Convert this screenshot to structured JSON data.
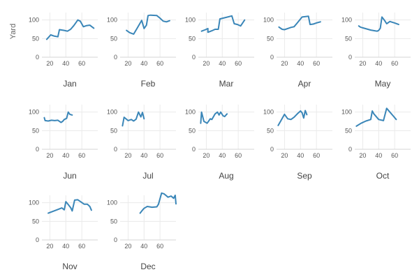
{
  "chart_data": {
    "type": "line",
    "ylabel": "Yard",
    "xlim": [
      10,
      80
    ],
    "ylim": [
      0,
      120
    ],
    "xticks": [
      20,
      40,
      60
    ],
    "yticks": [
      0,
      50,
      100
    ],
    "line_color": "#3a86b8",
    "grid": true,
    "panels": [
      {
        "title": "Jan",
        "x": [
          16,
          21,
          25,
          30,
          32,
          38,
          42,
          46,
          50,
          55,
          58,
          62,
          66,
          70,
          75
        ],
        "y": [
          48,
          60,
          57,
          55,
          74,
          72,
          70,
          75,
          85,
          100,
          97,
          82,
          85,
          86,
          78
        ]
      },
      {
        "title": "Feb",
        "x": [
          18,
          22,
          27,
          32,
          37,
          40,
          43,
          45,
          48,
          56,
          60,
          64,
          68,
          72
        ],
        "y": [
          72,
          66,
          62,
          80,
          99,
          77,
          86,
          112,
          113,
          112,
          105,
          97,
          95,
          98
        ]
      },
      {
        "title": "Mar",
        "x": [
          14,
          19,
          22,
          22,
          27,
          31,
          35,
          37,
          45,
          52,
          55,
          59,
          63,
          68
        ],
        "y": [
          70,
          74,
          77,
          67,
          71,
          75,
          75,
          103,
          107,
          111,
          90,
          88,
          84,
          100
        ]
      },
      {
        "title": "Apr",
        "x": [
          13,
          17,
          20,
          24,
          28,
          32,
          36,
          42,
          50,
          52,
          56,
          60,
          65
        ],
        "y": [
          81,
          75,
          74,
          77,
          80,
          82,
          92,
          108,
          110,
          88,
          89,
          92,
          95
        ]
      },
      {
        "title": "May",
        "x": [
          15,
          17,
          20,
          25,
          30,
          35,
          38,
          40,
          42,
          44,
          47,
          50,
          54,
          60,
          65
        ],
        "y": [
          84,
          81,
          79,
          76,
          73,
          71,
          70,
          72,
          78,
          108,
          100,
          90,
          96,
          92,
          88
        ]
      },
      {
        "title": "Jun",
        "x": [
          13,
          14,
          18,
          22,
          26,
          30,
          34,
          36,
          38,
          41,
          43,
          45,
          48
        ],
        "y": [
          85,
          77,
          76,
          78,
          77,
          78,
          72,
          75,
          80,
          83,
          100,
          94,
          92
        ]
      },
      {
        "title": "Jul",
        "x": [
          13,
          15,
          20,
          24,
          27,
          30,
          33,
          36,
          38,
          40
        ],
        "y": [
          63,
          86,
          77,
          80,
          76,
          81,
          100,
          87,
          99,
          82
        ]
      },
      {
        "title": "Aug",
        "x": [
          13,
          14,
          17,
          21,
          25,
          27,
          31,
          34,
          36,
          38,
          41,
          43,
          46
        ],
        "y": [
          70,
          100,
          75,
          70,
          82,
          80,
          95,
          100,
          92,
          100,
          90,
          88,
          95
        ]
      },
      {
        "title": "Sep",
        "x": [
          12,
          15,
          20,
          24,
          28,
          32,
          36,
          40,
          42,
          44,
          46,
          48
        ],
        "y": [
          64,
          75,
          94,
          82,
          80,
          86,
          95,
          103,
          98,
          84,
          104,
          93
        ]
      },
      {
        "title": "Oct",
        "x": [
          12,
          18,
          24,
          30,
          32,
          34,
          40,
          46,
          50,
          54,
          58,
          62
        ],
        "y": [
          62,
          70,
          76,
          80,
          103,
          95,
          80,
          77,
          110,
          100,
          90,
          80
        ]
      },
      {
        "title": "Nov",
        "x": [
          18,
          24,
          30,
          35,
          38,
          40,
          43,
          46,
          48,
          51,
          55,
          59,
          63,
          67,
          70,
          72
        ],
        "y": [
          72,
          77,
          82,
          86,
          81,
          103,
          95,
          87,
          78,
          107,
          108,
          102,
          96,
          96,
          90,
          80
        ]
      },
      {
        "title": "Dec",
        "x": [
          35,
          38,
          40,
          44,
          50,
          56,
          58,
          62,
          65,
          70,
          74,
          77,
          79,
          80
        ],
        "y": [
          72,
          80,
          85,
          90,
          88,
          89,
          96,
          126,
          124,
          115,
          118,
          112,
          120,
          97
        ]
      }
    ]
  }
}
